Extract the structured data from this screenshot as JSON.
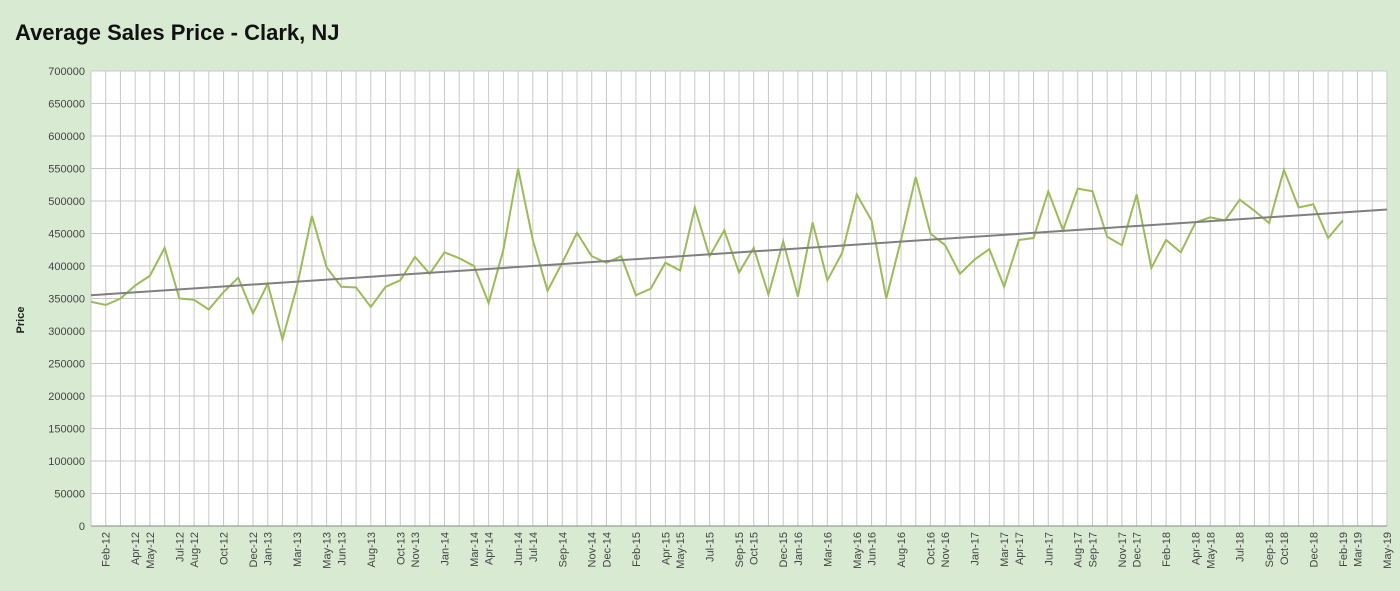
{
  "chart_data": {
    "type": "line",
    "title": "Average Sales Price - Clark, NJ",
    "y_label": "Price",
    "categories": [
      null,
      "Feb-12",
      null,
      "Apr-12",
      "May-12",
      null,
      "Jul-12",
      "Aug-12",
      null,
      "Oct-12",
      null,
      "Dec-12",
      "Jan-13",
      null,
      "Mar-13",
      null,
      "May-13",
      "Jun-13",
      null,
      "Aug-13",
      null,
      "Oct-13",
      "Nov-13",
      null,
      "Jan-14",
      null,
      "Mar-14",
      "Apr-14",
      null,
      "Jun-14",
      "Jul-14",
      null,
      "Sep-14",
      null,
      "Nov-14",
      "Dec-14",
      null,
      "Feb-15",
      null,
      "Apr-15",
      "May-15",
      null,
      "Jul-15",
      null,
      "Sep-15",
      "Oct-15",
      null,
      "Dec-15",
      "Jan-16",
      null,
      "Mar-16",
      null,
      "May-16",
      "Jun-16",
      null,
      "Aug-16",
      null,
      "Oct-16",
      "Nov-16",
      null,
      "Jan-17",
      null,
      "Mar-17",
      "Apr-17",
      null,
      "Jun-17",
      null,
      "Aug-17",
      "Sep-17",
      null,
      "Nov-17",
      "Dec-17",
      null,
      "Feb-18",
      null,
      "Apr-18",
      "May-18",
      null,
      "Jul-18",
      null,
      "Sep-18",
      "Oct-18",
      null,
      "Dec-18",
      null,
      "Feb-19",
      "Mar-19",
      null,
      "May-19"
    ],
    "series": [
      {
        "color": "#9bbb59",
        "values": [
          345000,
          340000,
          350000,
          370000,
          385000,
          428000,
          350000,
          348000,
          333000,
          360000,
          382000,
          327000,
          373000,
          287000,
          370000,
          477000,
          398000,
          368000,
          367000,
          337000,
          368000,
          378000,
          414000,
          388000,
          421000,
          412000,
          400000,
          343000,
          425000,
          550000,
          440000,
          362000,
          405000,
          451000,
          415000,
          405000,
          415000,
          355000,
          365000,
          405000,
          393000,
          490000,
          415000,
          455000,
          390000,
          428000,
          356000,
          438000,
          353000,
          467000,
          378000,
          420000,
          510000,
          470000,
          350000,
          440000,
          537000,
          450000,
          432000,
          388000,
          410000,
          426000,
          368000,
          440000,
          443000,
          515000,
          455000,
          519000,
          515000,
          445000,
          432000,
          510000,
          397000,
          440000,
          421000,
          467000,
          475000,
          470000,
          502000,
          485000,
          466000,
          548000,
          490000,
          495000,
          443000,
          470000,
          null,
          null,
          null
        ]
      }
    ],
    "trendline": {
      "color": "#7f7f7f",
      "values": [
        355000,
        487000
      ]
    },
    "ylim": [
      0,
      700000
    ],
    "yticks": [
      0,
      50000,
      100000,
      150000,
      200000,
      250000,
      300000,
      350000,
      400000,
      450000,
      500000,
      550000,
      600000,
      650000,
      700000
    ],
    "grid": true
  }
}
